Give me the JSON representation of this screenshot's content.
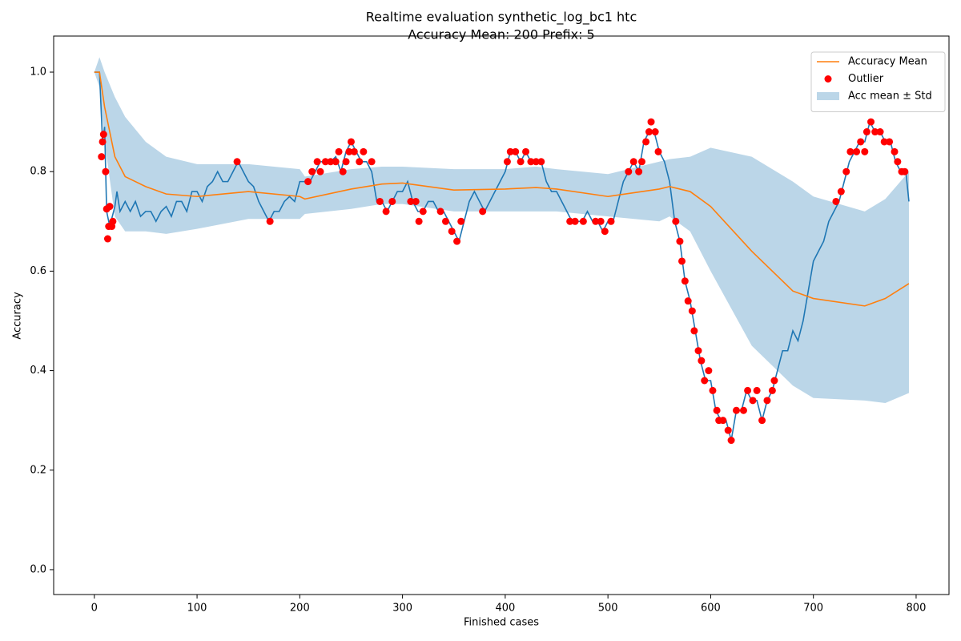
{
  "chart_data": {
    "type": "line",
    "title": "Realtime evaluation synthetic_log_bc1 htc",
    "subtitle": "Accuracy Mean: 200 Prefix: 5",
    "xlabel": "Finished cases",
    "ylabel": "Accuracy",
    "xlim": [
      -39.6,
      832
    ],
    "ylim": [
      -0.05,
      1.0725
    ],
    "xticks": [
      0,
      100,
      200,
      300,
      400,
      500,
      600,
      700,
      800
    ],
    "yticks": [
      {
        "value": 0,
        "label": "0.0"
      },
      {
        "value": 0.2,
        "label": "0.2"
      },
      {
        "value": 0.4,
        "label": "0.4"
      },
      {
        "value": 0.6,
        "label": "0.6"
      },
      {
        "value": 0.8,
        "label": "0.8"
      },
      {
        "value": 1,
        "label": "1.0"
      }
    ],
    "legend": "upper right",
    "series": [
      {
        "color": "#1f77b4",
        "x": [
          0,
          5,
          8,
          10,
          12,
          15,
          20,
          22,
          25,
          30,
          35,
          40,
          45,
          50,
          55,
          60,
          65,
          70,
          75,
          80,
          85,
          90,
          95,
          100,
          105,
          110,
          115,
          120,
          125,
          130,
          135,
          140,
          145,
          150,
          155,
          160,
          165,
          170,
          175,
          180,
          185,
          190,
          195,
          200,
          205,
          210,
          215,
          220,
          225,
          230,
          235,
          240,
          245,
          250,
          255,
          260,
          265,
          270,
          275,
          280,
          285,
          290,
          295,
          300,
          305,
          310,
          315,
          320,
          325,
          330,
          335,
          340,
          345,
          350,
          355,
          360,
          365,
          370,
          375,
          380,
          385,
          390,
          395,
          400,
          405,
          410,
          415,
          420,
          425,
          430,
          435,
          440,
          445,
          450,
          455,
          460,
          465,
          470,
          475,
          480,
          485,
          490,
          495,
          500,
          505,
          510,
          515,
          520,
          525,
          530,
          535,
          540,
          545,
          550,
          555,
          560,
          565,
          570,
          575,
          580,
          585,
          590,
          595,
          600,
          605,
          610,
          615,
          620,
          625,
          630,
          635,
          640,
          645,
          650,
          655,
          660,
          665,
          670,
          675,
          680,
          685,
          690,
          695,
          700,
          705,
          710,
          715,
          720,
          725,
          730,
          735,
          740,
          745,
          750,
          755,
          760,
          765,
          770,
          775,
          780,
          785,
          790,
          793
        ],
        "values": [
          1.0,
          1.0,
          0.86,
          0.89,
          0.72,
          0.69,
          0.73,
          0.76,
          0.72,
          0.74,
          0.72,
          0.74,
          0.71,
          0.72,
          0.72,
          0.7,
          0.72,
          0.73,
          0.71,
          0.74,
          0.74,
          0.72,
          0.76,
          0.76,
          0.74,
          0.77,
          0.78,
          0.8,
          0.78,
          0.78,
          0.8,
          0.82,
          0.8,
          0.78,
          0.77,
          0.74,
          0.72,
          0.7,
          0.72,
          0.72,
          0.74,
          0.75,
          0.74,
          0.78,
          0.78,
          0.78,
          0.8,
          0.82,
          0.82,
          0.82,
          0.83,
          0.8,
          0.84,
          0.86,
          0.84,
          0.82,
          0.82,
          0.8,
          0.74,
          0.74,
          0.72,
          0.74,
          0.76,
          0.76,
          0.78,
          0.74,
          0.72,
          0.72,
          0.74,
          0.74,
          0.72,
          0.72,
          0.7,
          0.68,
          0.66,
          0.7,
          0.74,
          0.76,
          0.74,
          0.72,
          0.74,
          0.76,
          0.78,
          0.8,
          0.84,
          0.84,
          0.82,
          0.84,
          0.82,
          0.82,
          0.82,
          0.78,
          0.76,
          0.76,
          0.74,
          0.72,
          0.7,
          0.7,
          0.7,
          0.72,
          0.7,
          0.7,
          0.68,
          0.7,
          0.7,
          0.74,
          0.78,
          0.8,
          0.82,
          0.8,
          0.86,
          0.88,
          0.88,
          0.84,
          0.82,
          0.78,
          0.7,
          0.66,
          0.58,
          0.54,
          0.48,
          0.42,
          0.38,
          0.38,
          0.32,
          0.3,
          0.3,
          0.26,
          0.32,
          0.32,
          0.36,
          0.34,
          0.34,
          0.3,
          0.34,
          0.36,
          0.4,
          0.44,
          0.44,
          0.48,
          0.46,
          0.5,
          0.56,
          0.62,
          0.64,
          0.66,
          0.7,
          0.72,
          0.74,
          0.78,
          0.82,
          0.84,
          0.86,
          0.86,
          0.9,
          0.88,
          0.88,
          0.86,
          0.86,
          0.82,
          0.8,
          0.8,
          0.74
        ]
      },
      {
        "name": "Accuracy Mean",
        "color": "#ff7f0e",
        "x": [
          0,
          5,
          10,
          20,
          30,
          50,
          70,
          100,
          150,
          200,
          205,
          250,
          280,
          300,
          350,
          400,
          430,
          450,
          500,
          550,
          560,
          580,
          600,
          640,
          680,
          700,
          750,
          770,
          793
        ],
        "values": [
          1.0,
          1.0,
          0.93,
          0.83,
          0.79,
          0.77,
          0.755,
          0.75,
          0.76,
          0.75,
          0.745,
          0.765,
          0.775,
          0.777,
          0.763,
          0.765,
          0.768,
          0.765,
          0.75,
          0.765,
          0.77,
          0.76,
          0.73,
          0.64,
          0.56,
          0.545,
          0.53,
          0.545,
          0.575
        ]
      },
      {
        "name": "Outlier",
        "color": "#ff0000",
        "kind": "scatter",
        "x": [
          7,
          8,
          9,
          11,
          12,
          13,
          14,
          15,
          17,
          18,
          139,
          171,
          208,
          212,
          217,
          220,
          225,
          230,
          235,
          238,
          242,
          245,
          248,
          250,
          253,
          258,
          262,
          270,
          278,
          284,
          290,
          308,
          313,
          316,
          320,
          337,
          342,
          348,
          353,
          357,
          378,
          402,
          405,
          410,
          415,
          420,
          425,
          430,
          435,
          463,
          468,
          476,
          488,
          493,
          497,
          503,
          520,
          525,
          530,
          533,
          537,
          540,
          542,
          546,
          549,
          566,
          570,
          572,
          575,
          578,
          582,
          584,
          588,
          591,
          594,
          598,
          602,
          606,
          608,
          612,
          617,
          620,
          625,
          632,
          636,
          641,
          645,
          650,
          655,
          660,
          662,
          722,
          727,
          732,
          736,
          742,
          746,
          750,
          752,
          756,
          760,
          765,
          769,
          774,
          779,
          782,
          786,
          789
        ],
        "values": [
          0.83,
          0.86,
          0.875,
          0.8,
          0.725,
          0.665,
          0.69,
          0.73,
          0.69,
          0.7,
          0.82,
          0.7,
          0.78,
          0.8,
          0.82,
          0.8,
          0.82,
          0.82,
          0.82,
          0.84,
          0.8,
          0.82,
          0.84,
          0.86,
          0.84,
          0.82,
          0.84,
          0.82,
          0.74,
          0.72,
          0.74,
          0.74,
          0.74,
          0.7,
          0.72,
          0.72,
          0.7,
          0.68,
          0.66,
          0.7,
          0.72,
          0.82,
          0.84,
          0.84,
          0.82,
          0.84,
          0.82,
          0.82,
          0.82,
          0.7,
          0.7,
          0.7,
          0.7,
          0.7,
          0.68,
          0.7,
          0.8,
          0.82,
          0.8,
          0.82,
          0.86,
          0.88,
          0.9,
          0.88,
          0.84,
          0.7,
          0.66,
          0.62,
          0.58,
          0.54,
          0.52,
          0.48,
          0.44,
          0.42,
          0.38,
          0.4,
          0.36,
          0.32,
          0.3,
          0.3,
          0.28,
          0.26,
          0.32,
          0.32,
          0.36,
          0.34,
          0.36,
          0.3,
          0.34,
          0.36,
          0.38,
          0.74,
          0.76,
          0.8,
          0.84,
          0.84,
          0.86,
          0.84,
          0.88,
          0.9,
          0.88,
          0.88,
          0.86,
          0.86,
          0.84,
          0.82,
          0.8,
          0.8
        ]
      },
      {
        "name": "Acc mean ± Std",
        "color": "#1f77b4",
        "kind": "band",
        "x": [
          0,
          5,
          10,
          20,
          30,
          50,
          70,
          100,
          150,
          200,
          205,
          250,
          280,
          300,
          350,
          400,
          430,
          450,
          500,
          550,
          560,
          580,
          600,
          640,
          680,
          700,
          750,
          770,
          793
        ],
        "upper": [
          1.0,
          1.03,
          1.0,
          0.95,
          0.91,
          0.86,
          0.83,
          0.815,
          0.815,
          0.805,
          0.79,
          0.805,
          0.81,
          0.81,
          0.805,
          0.805,
          0.81,
          0.805,
          0.795,
          0.82,
          0.825,
          0.83,
          0.848,
          0.83,
          0.78,
          0.75,
          0.72,
          0.745,
          0.8
        ],
        "lower": [
          1.0,
          0.97,
          0.86,
          0.71,
          0.68,
          0.68,
          0.675,
          0.685,
          0.705,
          0.705,
          0.715,
          0.725,
          0.735,
          0.735,
          0.72,
          0.72,
          0.72,
          0.72,
          0.71,
          0.7,
          0.71,
          0.68,
          0.6,
          0.45,
          0.37,
          0.345,
          0.34,
          0.335,
          0.355
        ]
      }
    ]
  }
}
